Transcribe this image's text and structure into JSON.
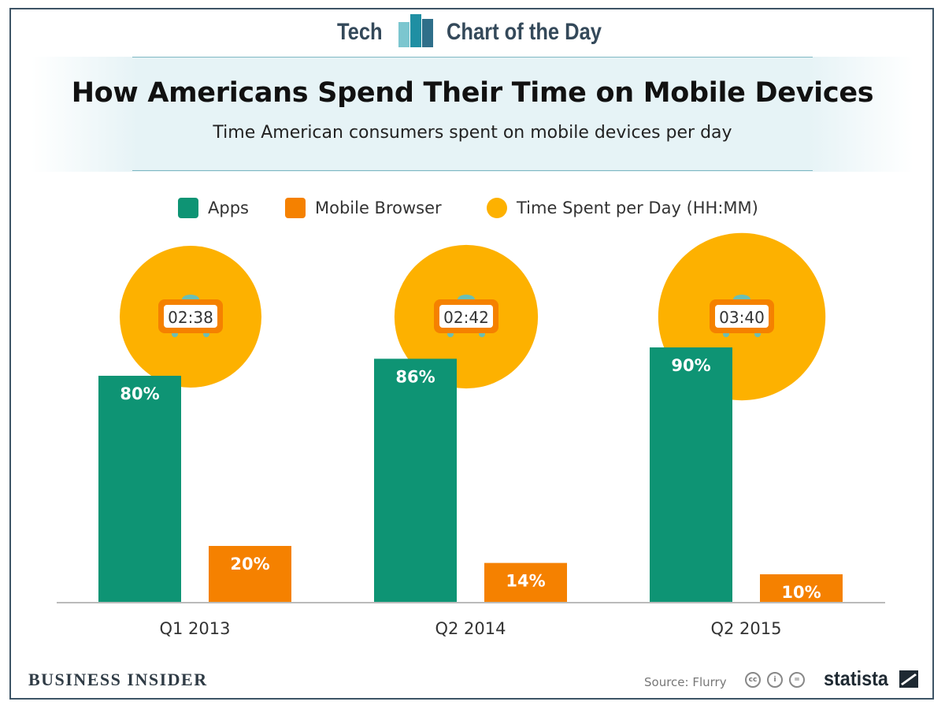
{
  "header": {
    "left_word": "Tech",
    "right_words": "Chart of the Day"
  },
  "title": "How Americans Spend Their Time on Mobile Devices",
  "subtitle": "Time American consumers spent on mobile devices per day",
  "legend": [
    {
      "label": "Apps",
      "color": "#0e9474"
    },
    {
      "label": "Mobile Browser",
      "color": "#f58100"
    },
    {
      "label": "Time Spent per Day (HH:MM)",
      "color": "#fdb100"
    }
  ],
  "chart_data": {
    "type": "bar",
    "title": "How Americans Spend Their Time on Mobile Devices",
    "subtitle": "Time American consumers spent on mobile devices per day",
    "categories": [
      "Q1 2013",
      "Q2 2014",
      "Q2 2015"
    ],
    "series": [
      {
        "name": "Apps",
        "values": [
          80,
          86,
          90
        ],
        "labels": [
          "80%",
          "86%",
          "90%"
        ],
        "color": "#0e9474"
      },
      {
        "name": "Mobile Browser",
        "values": [
          20,
          14,
          10
        ],
        "labels": [
          "20%",
          "14%",
          "10%"
        ],
        "color": "#f58100"
      }
    ],
    "bubble_series": {
      "name": "Time Spent per Day (HH:MM)",
      "labels": [
        "02:38",
        "02:42",
        "03:40"
      ],
      "minutes": [
        158,
        162,
        220
      ],
      "color": "#fdb100"
    },
    "unit": "%",
    "ylim": [
      0,
      100
    ],
    "xlabel": "",
    "ylabel": "",
    "grid": false
  },
  "footer": {
    "publisher": "BUSINESS INSIDER",
    "source": "Source: Flurry",
    "brand": "statista"
  },
  "colors": {
    "frame": "#3d5466",
    "clock_frame": "#f58100",
    "clock_bell": "#6bbfb5"
  }
}
